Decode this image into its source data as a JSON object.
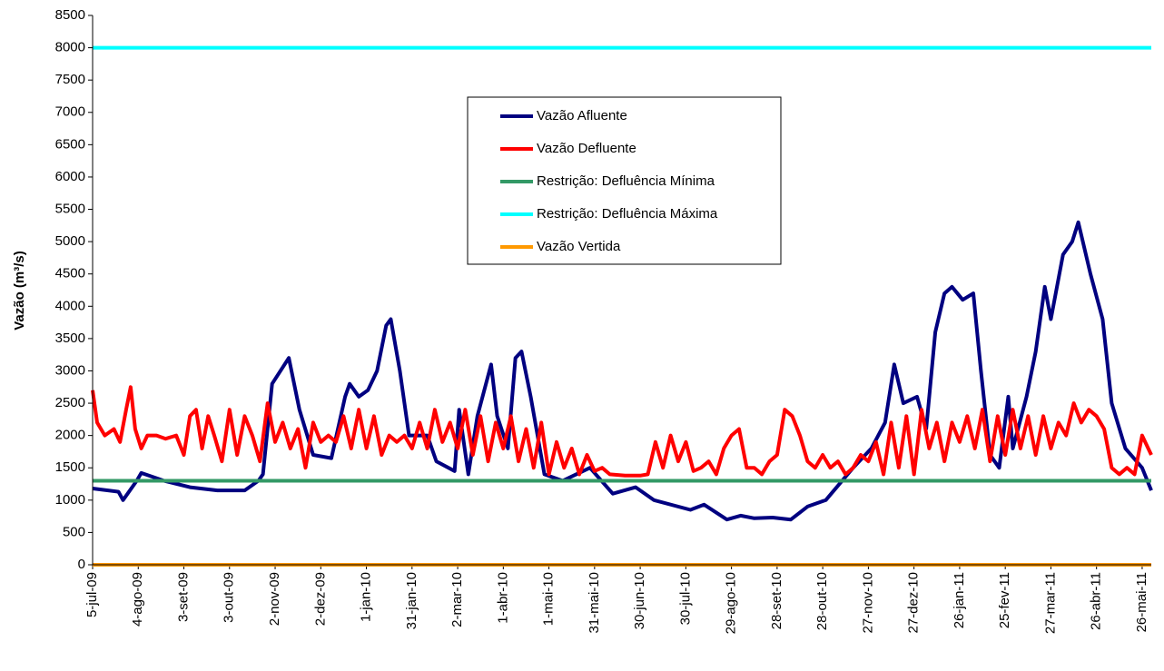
{
  "chart_data": {
    "type": "line",
    "y_label": "Vazão (m³/s)",
    "xlim": [
      0,
      696
    ],
    "ylim": [
      0,
      8500
    ],
    "yticks": [
      0,
      500,
      1000,
      1500,
      2000,
      2500,
      3000,
      3500,
      4000,
      4500,
      5000,
      5500,
      6000,
      6500,
      7000,
      7500,
      8000,
      8500
    ],
    "xticks": [
      {
        "value": 0,
        "label": "5-jul-09"
      },
      {
        "value": 30,
        "label": "4-ago-09"
      },
      {
        "value": 60,
        "label": "3-set-09"
      },
      {
        "value": 90,
        "label": "3-out-09"
      },
      {
        "value": 120,
        "label": "2-nov-09"
      },
      {
        "value": 150,
        "label": "2-dez-09"
      },
      {
        "value": 180,
        "label": "1-jan-10"
      },
      {
        "value": 210,
        "label": "31-jan-10"
      },
      {
        "value": 240,
        "label": "2-mar-10"
      },
      {
        "value": 270,
        "label": "1-abr-10"
      },
      {
        "value": 300,
        "label": "1-mai-10"
      },
      {
        "value": 330,
        "label": "31-mai-10"
      },
      {
        "value": 360,
        "label": "30-jun-10"
      },
      {
        "value": 390,
        "label": "30-jul-10"
      },
      {
        "value": 420,
        "label": "29-ago-10"
      },
      {
        "value": 450,
        "label": "28-set-10"
      },
      {
        "value": 480,
        "label": "28-out-10"
      },
      {
        "value": 510,
        "label": "27-nov-10"
      },
      {
        "value": 540,
        "label": "27-dez-10"
      },
      {
        "value": 570,
        "label": "26-jan-11"
      },
      {
        "value": 600,
        "label": "25-fev-11"
      },
      {
        "value": 630,
        "label": "27-mar-11"
      },
      {
        "value": 660,
        "label": "26-abr-11"
      },
      {
        "value": 690,
        "label": "26-mai-11"
      }
    ],
    "series": [
      {
        "name": "Vazão Afluente",
        "color": "#000080",
        "x": [
          0,
          17,
          20,
          29,
          32,
          47,
          64,
          82,
          100,
          109,
          112,
          118,
          129,
          136,
          145,
          157,
          166,
          169,
          175,
          181,
          187,
          193,
          196,
          202,
          208,
          220,
          226,
          238,
          241,
          247,
          253,
          262,
          266,
          273,
          278,
          282,
          288,
          297,
          309,
          327,
          342,
          357,
          369,
          393,
          402,
          417,
          426,
          435,
          447,
          459,
          470,
          482,
          500,
          512,
          521,
          527,
          533,
          542,
          548,
          554,
          560,
          565,
          572,
          579,
          584,
          590,
          596,
          602,
          605,
          614,
          620,
          626,
          630,
          638,
          644,
          648,
          656,
          664,
          670,
          679,
          690,
          696
        ],
        "values": [
          1180,
          1130,
          1000,
          1300,
          1420,
          1300,
          1200,
          1150,
          1150,
          1300,
          1400,
          2800,
          3200,
          2400,
          1700,
          1650,
          2600,
          2800,
          2600,
          2700,
          3000,
          3700,
          3800,
          3000,
          2000,
          2000,
          1600,
          1450,
          2400,
          1400,
          2300,
          3100,
          2300,
          1800,
          3200,
          3300,
          2600,
          1400,
          1300,
          1500,
          1100,
          1200,
          1000,
          850,
          930,
          700,
          760,
          720,
          730,
          700,
          900,
          1000,
          1500,
          1800,
          2200,
          3100,
          2500,
          2600,
          2100,
          3600,
          4200,
          4300,
          4100,
          4200,
          3000,
          1700,
          1500,
          2600,
          1800,
          2600,
          3300,
          4300,
          3800,
          4800,
          5000,
          5300,
          4500,
          3800,
          2500,
          1800,
          1500,
          1150
        ]
      },
      {
        "name": "Vazão Defluente",
        "color": "#ff0000",
        "x": [
          0,
          3,
          8,
          14,
          18,
          22,
          25,
          28,
          32,
          36,
          42,
          48,
          55,
          60,
          64,
          68,
          72,
          76,
          80,
          85,
          90,
          95,
          100,
          105,
          110,
          115,
          120,
          125,
          130,
          135,
          140,
          145,
          150,
          155,
          160,
          165,
          170,
          175,
          180,
          185,
          190,
          195,
          200,
          205,
          210,
          215,
          220,
          225,
          230,
          235,
          240,
          245,
          250,
          255,
          260,
          265,
          270,
          275,
          280,
          285,
          290,
          295,
          300,
          305,
          310,
          315,
          320,
          325,
          330,
          335,
          340,
          350,
          360,
          365,
          370,
          375,
          380,
          385,
          390,
          395,
          400,
          405,
          410,
          415,
          420,
          425,
          430,
          435,
          440,
          445,
          450,
          455,
          460,
          465,
          470,
          475,
          480,
          485,
          490,
          495,
          500,
          505,
          510,
          515,
          520,
          525,
          530,
          535,
          540,
          545,
          550,
          555,
          560,
          565,
          570,
          575,
          580,
          585,
          590,
          595,
          600,
          605,
          610,
          615,
          620,
          625,
          630,
          635,
          640,
          645,
          650,
          655,
          660,
          665,
          670,
          675,
          680,
          685,
          690,
          696
        ],
        "values": [
          2700,
          2200,
          2000,
          2100,
          1900,
          2400,
          2750,
          2100,
          1800,
          2000,
          2000,
          1950,
          2000,
          1700,
          2300,
          2400,
          1800,
          2300,
          2000,
          1600,
          2400,
          1700,
          2300,
          2000,
          1600,
          2500,
          1900,
          2200,
          1800,
          2100,
          1500,
          2200,
          1900,
          2000,
          1900,
          2300,
          1800,
          2400,
          1800,
          2300,
          1700,
          2000,
          1900,
          2000,
          1800,
          2200,
          1800,
          2400,
          1900,
          2200,
          1800,
          2400,
          1700,
          2300,
          1600,
          2200,
          1800,
          2300,
          1600,
          2100,
          1500,
          2200,
          1400,
          1900,
          1500,
          1800,
          1400,
          1700,
          1450,
          1500,
          1400,
          1380,
          1380,
          1400,
          1900,
          1500,
          2000,
          1600,
          1900,
          1450,
          1500,
          1600,
          1400,
          1800,
          2000,
          2100,
          1500,
          1500,
          1400,
          1600,
          1700,
          2400,
          2300,
          2000,
          1600,
          1500,
          1700,
          1500,
          1600,
          1400,
          1500,
          1700,
          1600,
          1900,
          1400,
          2200,
          1500,
          2300,
          1400,
          2400,
          1800,
          2200,
          1600,
          2200,
          1900,
          2300,
          1800,
          2400,
          1600,
          2300,
          1700,
          2400,
          1800,
          2300,
          1700,
          2300,
          1800,
          2200,
          2000,
          2500,
          2200,
          2400,
          2300,
          2100,
          1500,
          1400,
          1500,
          1400,
          2000,
          1700
        ]
      },
      {
        "name": "Restrição: Defluência Mínima",
        "color": "#339966",
        "x": [
          0,
          696
        ],
        "values": [
          1300,
          1300
        ]
      },
      {
        "name": "Restrição: Defluência Máxima",
        "color": "#00ffff",
        "x": [
          0,
          696
        ],
        "values": [
          8000,
          8000
        ]
      },
      {
        "name": "Vazão Vertida",
        "color": "#ff9900",
        "x": [
          0,
          696
        ],
        "values": [
          0,
          0
        ]
      }
    ]
  }
}
